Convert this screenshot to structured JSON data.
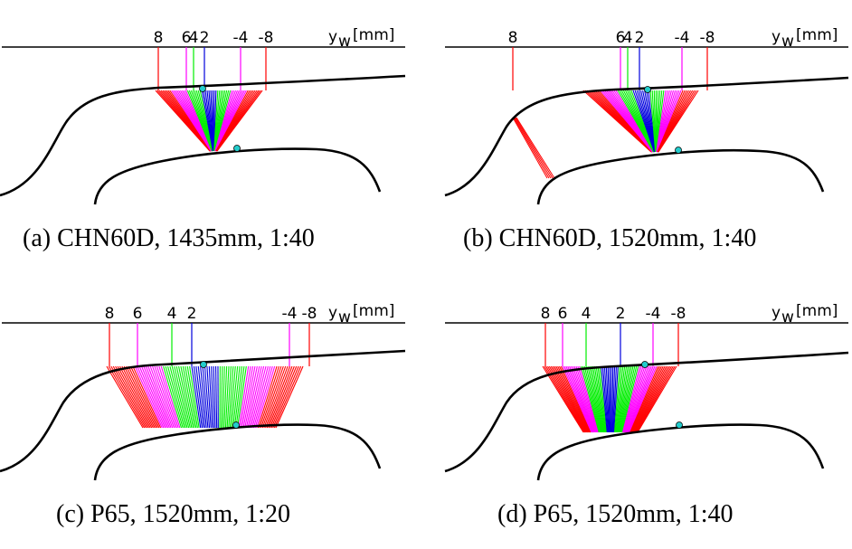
{
  "axis_label": "y",
  "axis_sub": "w",
  "axis_unit": "[mm]",
  "colors": {
    "c8": "#ff0000",
    "c6": "#ff00ff",
    "c4": "#00ee00",
    "c2": "#0000dd",
    "marker": "#22cccc"
  },
  "panels": [
    {
      "id": "a",
      "caption": "(a) CHN60D, 1435mm, 1:40",
      "ticks": [
        {
          "t": "8"
        },
        {
          "t": "6"
        },
        {
          "t": "4"
        },
        {
          "t": "2"
        },
        {
          "t": "-4"
        },
        {
          "t": "-8"
        }
      ]
    },
    {
      "id": "b",
      "caption": "(b) CHN60D, 1520mm, 1:40",
      "ticks": [
        {
          "t": "8"
        },
        {
          "t": "6"
        },
        {
          "t": "4"
        },
        {
          "t": "2"
        },
        {
          "t": "-4"
        },
        {
          "t": "-8"
        }
      ]
    },
    {
      "id": "c",
      "caption": "(c) P65, 1520mm, 1:20",
      "ticks": [
        {
          "t": "8"
        },
        {
          "t": "6"
        },
        {
          "t": "4"
        },
        {
          "t": "2"
        },
        {
          "t": "-4"
        },
        {
          "t": "-8"
        }
      ]
    },
    {
      "id": "d",
      "caption": "(d) P65, 1520mm, 1:40",
      "ticks": [
        {
          "t": "8"
        },
        {
          "t": "6"
        },
        {
          "t": "4"
        },
        {
          "t": "2"
        },
        {
          "t": "-4"
        },
        {
          "t": "-8"
        }
      ]
    }
  ]
}
